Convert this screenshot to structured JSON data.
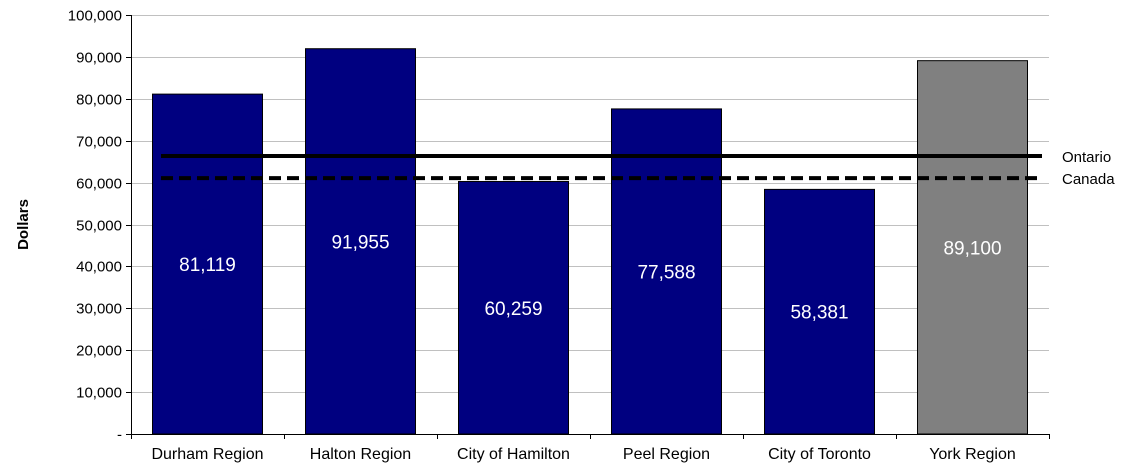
{
  "chart_data": {
    "type": "bar",
    "title": "",
    "xlabel": "",
    "ylabel": "Dollars",
    "ylim": [
      0,
      100000
    ],
    "y_ticks": [
      {
        "value": 0,
        "label": "-"
      },
      {
        "value": 10000,
        "label": "10,000"
      },
      {
        "value": 20000,
        "label": "20,000"
      },
      {
        "value": 30000,
        "label": "30,000"
      },
      {
        "value": 40000,
        "label": "40,000"
      },
      {
        "value": 50000,
        "label": "50,000"
      },
      {
        "value": 60000,
        "label": "60,000"
      },
      {
        "value": 70000,
        "label": "70,000"
      },
      {
        "value": 80000,
        "label": "80,000"
      },
      {
        "value": 90000,
        "label": "90,000"
      },
      {
        "value": 100000,
        "label": "100,000"
      }
    ],
    "categories": [
      "Durham Region",
      "Halton Region",
      "City of Hamilton",
      "Peel Region",
      "City of Toronto",
      "York Region"
    ],
    "values": [
      81119,
      91955,
      60259,
      77588,
      58381,
      89100
    ],
    "value_labels": [
      "81,119",
      "91,955",
      "60,259",
      "77,588",
      "58,381",
      "89,100"
    ],
    "bar_colors": [
      "#000080",
      "#000080",
      "#000080",
      "#000080",
      "#000080",
      "#808080"
    ],
    "reference_lines": [
      {
        "name": "Ontario",
        "value": 66358,
        "style": "solid"
      },
      {
        "name": "Canada",
        "value": 61072,
        "style": "dashed"
      }
    ],
    "grid": true,
    "gridline_color": "#c0c0c0"
  }
}
